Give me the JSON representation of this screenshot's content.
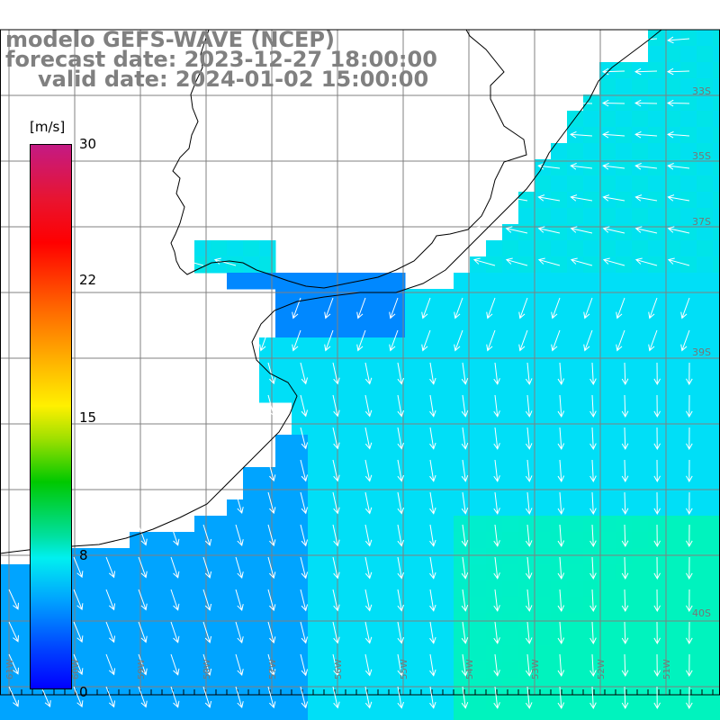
{
  "title": {
    "line1": "modelo GEFS-WAVE (NCEP)",
    "line2": "forecast date: 2023-12-27 18:00:00",
    "line3": "valid date: 2024-01-02 15:00:00"
  },
  "colorbar": {
    "unit": "[m/s]",
    "ticks": [
      "30",
      "22",
      "15",
      "8",
      "0"
    ],
    "tick_values": [
      30,
      22,
      15,
      8,
      0
    ],
    "range": [
      0,
      30
    ]
  },
  "axes": {
    "lat_labels": [
      "33S",
      "35S",
      "37S",
      "39S",
      "40S"
    ],
    "lon_labels": [
      "61W",
      "60W",
      "59W",
      "58W",
      "57W",
      "56W",
      "55W",
      "54W",
      "53W",
      "52W",
      "51W"
    ]
  },
  "colors": {
    "land": "#ffffff",
    "coast": "#000000",
    "grid": "#808080",
    "arrow": "#ffffff",
    "title": "#808080"
  },
  "wind_field": {
    "description_units": "m/s",
    "dominant_direction": "northeast to southwest (southward/southwestward flow)",
    "speed_range_shown": [
      4,
      11
    ]
  }
}
